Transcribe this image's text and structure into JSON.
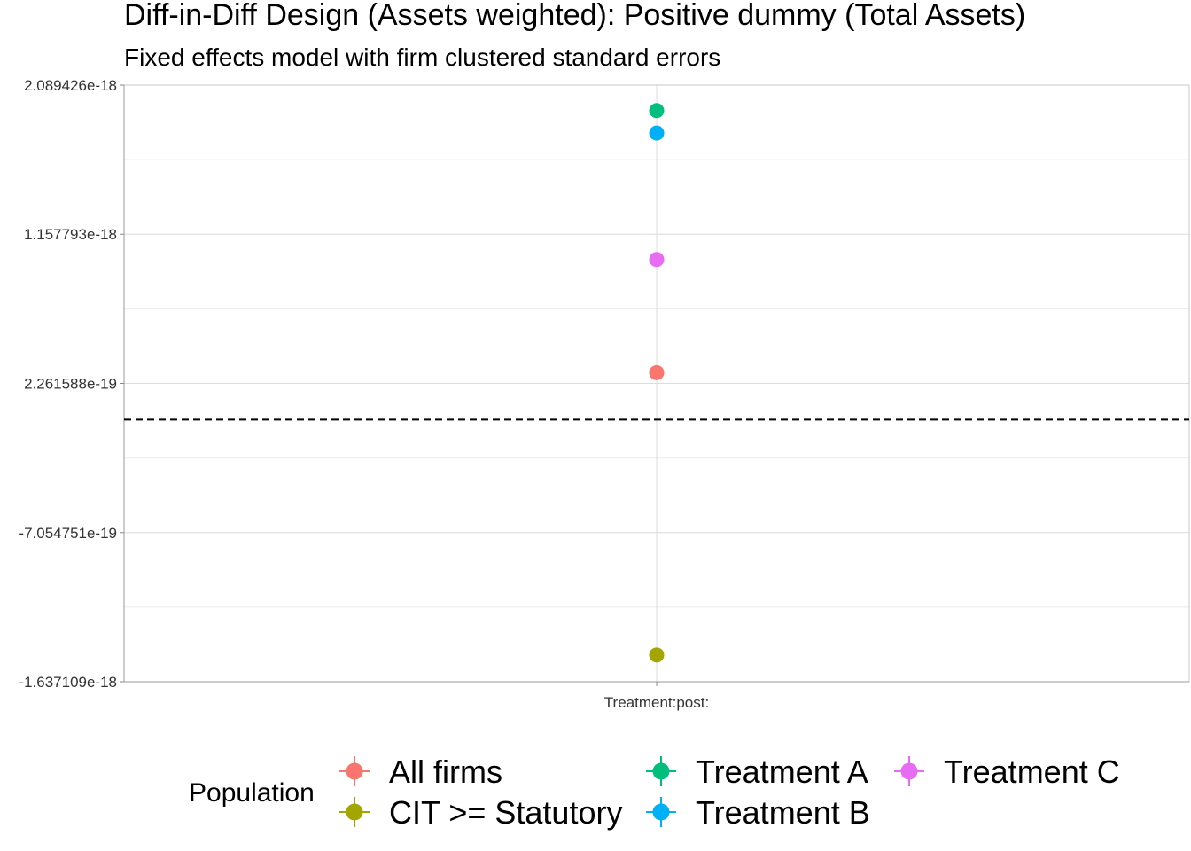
{
  "chart_data": {
    "type": "scatter",
    "title": "Diff-in-Diff Design (Assets weighted): Positive dummy (Total Assets)",
    "subtitle": "Fixed effects model with firm clustered standard errors",
    "xlabel": "",
    "ylabel": "",
    "categories": [
      "Treatment:post:"
    ],
    "y_ticks": [
      "2.089426e-18",
      "1.157793e-18",
      "2.261588e-19",
      "-7.054751e-19",
      "-1.637109e-18"
    ],
    "ylim": [
      -1.637109e-18,
      2.089426e-18
    ],
    "reference_line": {
      "y": 0,
      "style": "dashed"
    },
    "grid": true,
    "legend": {
      "title": "Population",
      "position": "bottom"
    },
    "series": [
      {
        "name": "All firms",
        "color": "#F8766D",
        "values": [
          2.93e-19
        ]
      },
      {
        "name": "CIT >= Statutory",
        "color": "#A3A500",
        "values": [
          -1.47e-18
        ]
      },
      {
        "name": "Treatment A",
        "color": "#00BF7D",
        "values": [
          1.93e-18
        ]
      },
      {
        "name": "Treatment B",
        "color": "#00B0F6",
        "values": [
          1.79e-18
        ]
      },
      {
        "name": "Treatment C",
        "color": "#E76BF3",
        "values": [
          1e-18
        ]
      }
    ]
  }
}
